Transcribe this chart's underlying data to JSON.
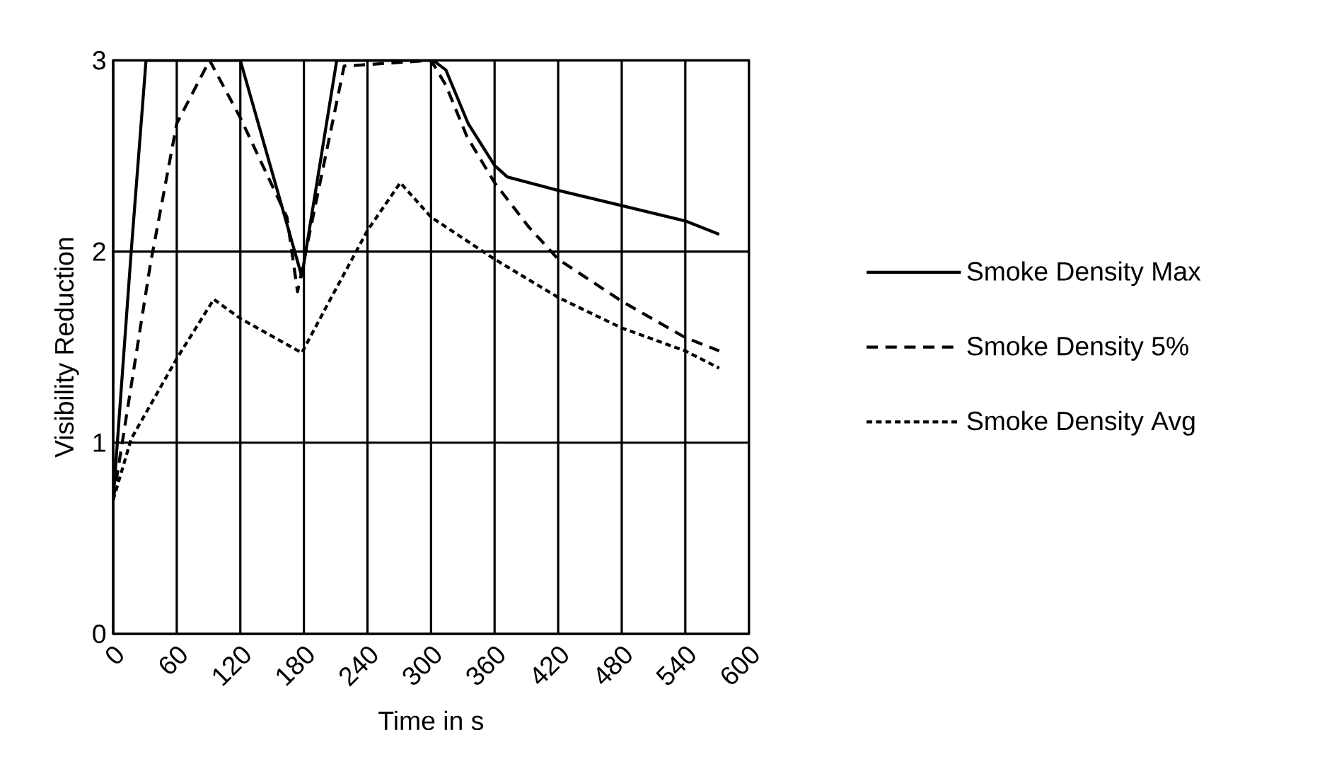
{
  "chart_data": {
    "type": "line",
    "xlabel": "Time in s",
    "ylabel": "Visibility Reduction",
    "xlim": [
      0,
      600
    ],
    "ylim": [
      0,
      3
    ],
    "xticks": [
      0,
      60,
      120,
      180,
      240,
      300,
      360,
      420,
      480,
      540,
      600
    ],
    "yticks": [
      0,
      1,
      2,
      3
    ],
    "grid": true,
    "legend": "right",
    "series": [
      {
        "name": "Smoke Density Max",
        "color": "#000000",
        "line_style": "solid",
        "x": [
          0,
          17,
          31,
          120,
          178,
          211,
          302,
          314,
          335,
          360,
          372,
          420,
          480,
          540,
          572
        ],
        "values": [
          0.7,
          2.0,
          3.0,
          3.0,
          1.87,
          3.0,
          3.0,
          2.95,
          2.67,
          2.45,
          2.39,
          2.32,
          2.24,
          2.16,
          2.09
        ]
      },
      {
        "name": "Smoke Density 5%",
        "color": "#000000",
        "line_style": "dashed",
        "x": [
          0,
          35,
          60,
          91,
          120,
          164,
          174,
          218,
          300,
          314,
          334,
          360,
          392,
          420,
          480,
          540,
          572
        ],
        "values": [
          0.7,
          1.93,
          2.67,
          3.0,
          2.7,
          2.18,
          1.79,
          2.97,
          3.0,
          2.87,
          2.6,
          2.36,
          2.13,
          1.96,
          1.74,
          1.55,
          1.48
        ]
      },
      {
        "name": "Smoke Density Avg",
        "color": "#000000",
        "line_style": "dotted",
        "x": [
          0,
          17,
          60,
          95,
          120,
          178,
          204,
          240,
          271,
          300,
          360,
          420,
          480,
          540,
          572
        ],
        "values": [
          0.7,
          1.02,
          1.44,
          1.75,
          1.65,
          1.47,
          1.74,
          2.11,
          2.36,
          2.18,
          1.96,
          1.76,
          1.6,
          1.48,
          1.39
        ]
      }
    ]
  }
}
